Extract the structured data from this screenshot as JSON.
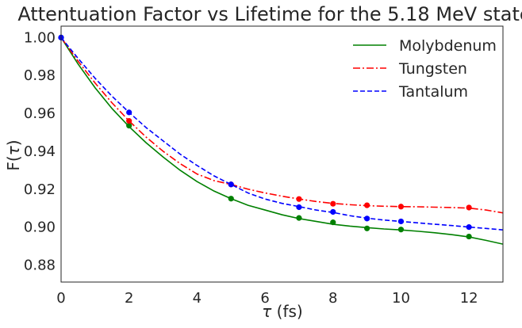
{
  "chart_data": {
    "type": "line",
    "title": "Attentuation Factor vs Lifetime for the 5.18 MeV state",
    "xlabel_symbol": "τ",
    "xlabel_unit": " (fs)",
    "ylabel_prefix": "F(",
    "ylabel_symbol": "τ",
    "ylabel_suffix": ")",
    "xlim": [
      0,
      13
    ],
    "ylim": [
      0.871,
      1.006
    ],
    "xticks": [
      0,
      2,
      4,
      6,
      8,
      10,
      12
    ],
    "xtick_labels": [
      "0",
      "2",
      "4",
      "6",
      "8",
      "10",
      "12"
    ],
    "yticks": [
      0.88,
      0.9,
      0.92,
      0.94,
      0.96,
      0.98,
      1.0
    ],
    "ytick_labels": [
      "0.88",
      "0.90",
      "0.92",
      "0.94",
      "0.96",
      "0.98",
      "1.00"
    ],
    "grid": false,
    "legend_position": "top-right",
    "series": [
      {
        "name": "Molybdenum",
        "color": "#008000",
        "line_style": "solid",
        "points_x": [
          0,
          2,
          5,
          7,
          8,
          9,
          10,
          12
        ],
        "points_y": [
          1.0,
          0.9535,
          0.915,
          0.9048,
          0.9025,
          0.8993,
          0.8987,
          0.895
        ],
        "curve_x": [
          0,
          0.5,
          1,
          1.5,
          2,
          2.5,
          3,
          3.5,
          4,
          4.5,
          5,
          5.5,
          6,
          6.5,
          7,
          7.5,
          8,
          8.5,
          9,
          9.5,
          10,
          10.5,
          11,
          11.5,
          12,
          12.5,
          13
        ],
        "curve_y": [
          1.0,
          0.986,
          0.9735,
          0.9625,
          0.953,
          0.9445,
          0.937,
          0.93,
          0.924,
          0.919,
          0.915,
          0.9115,
          0.909,
          0.9065,
          0.9045,
          0.903,
          0.9015,
          0.9005,
          0.8997,
          0.899,
          0.8985,
          0.8978,
          0.897,
          0.896,
          0.8948,
          0.893,
          0.891
        ]
      },
      {
        "name": "Tungsten",
        "color": "#ff0000",
        "line_style": "dashdot",
        "points_x": [
          2,
          5,
          7,
          8,
          9,
          10,
          12
        ],
        "points_y": [
          0.956,
          0.9225,
          0.9148,
          0.9123,
          0.9115,
          0.9108,
          0.9103
        ],
        "curve_x": [
          0,
          0.5,
          1,
          1.5,
          2,
          2.5,
          3,
          3.5,
          4,
          4.5,
          5,
          5.5,
          6,
          6.5,
          7,
          7.5,
          8,
          8.5,
          9,
          9.5,
          10,
          10.5,
          11,
          11.5,
          12,
          12.5,
          13
        ],
        "curve_y": [
          1.0,
          0.9875,
          0.976,
          0.9655,
          0.956,
          0.9475,
          0.94,
          0.9335,
          0.928,
          0.9245,
          0.9225,
          0.92,
          0.918,
          0.9163,
          0.9148,
          0.9135,
          0.9125,
          0.9118,
          0.9113,
          0.911,
          0.9108,
          0.9107,
          0.9105,
          0.9103,
          0.91,
          0.909,
          0.9075
        ]
      },
      {
        "name": "Tantalum",
        "color": "#0000ff",
        "line_style": "dashed",
        "points_x": [
          0,
          2,
          5,
          7,
          8,
          9,
          10,
          12
        ],
        "points_y": [
          1.0,
          0.9605,
          0.9225,
          0.9105,
          0.908,
          0.9045,
          0.903,
          0.9
        ],
        "curve_x": [
          0,
          0.5,
          1,
          1.5,
          2,
          2.5,
          3,
          3.5,
          4,
          4.5,
          5,
          5.5,
          6,
          6.5,
          7,
          7.5,
          8,
          8.5,
          9,
          9.5,
          10,
          10.5,
          11,
          11.5,
          12,
          12.5,
          13
        ],
        "curve_y": [
          1.0,
          0.989,
          0.9785,
          0.969,
          0.9605,
          0.9525,
          0.9455,
          0.9385,
          0.9325,
          0.927,
          0.9225,
          0.918,
          0.9148,
          0.9125,
          0.9108,
          0.909,
          0.9077,
          0.906,
          0.9047,
          0.9037,
          0.903,
          0.9022,
          0.9015,
          0.9008,
          0.9,
          0.8993,
          0.8985
        ]
      }
    ]
  }
}
